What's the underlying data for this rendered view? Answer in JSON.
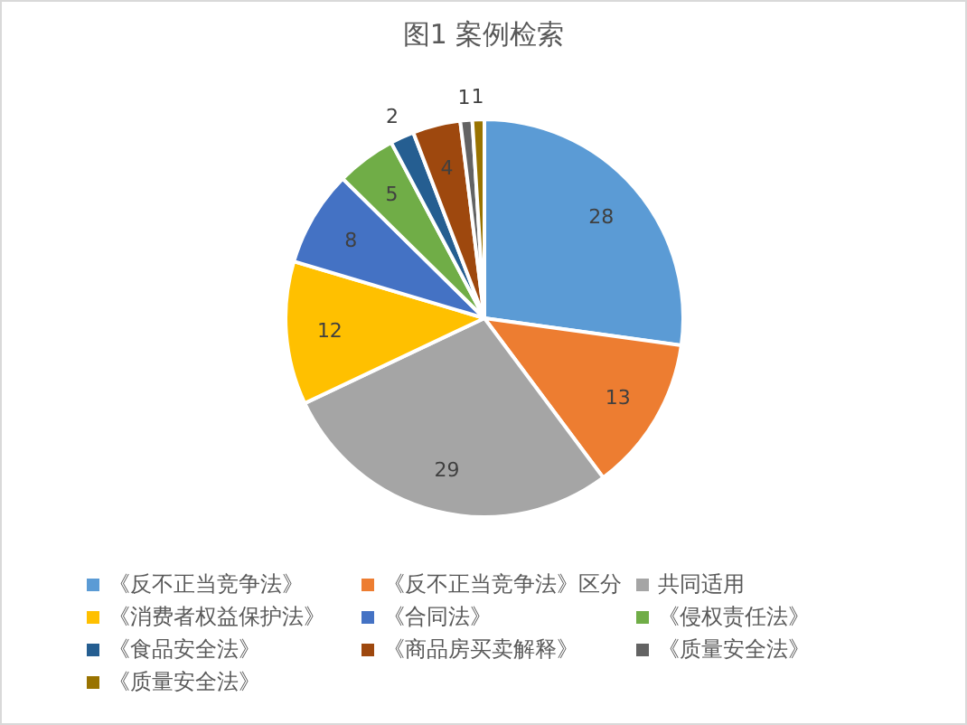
{
  "chart_data": {
    "type": "pie",
    "title": "图1 案例检索",
    "categories": [
      "《反不正当竞争法》",
      "《反不正当竞争法》区分",
      "共同适用",
      "《消费者权益保护法》",
      "《合同法》",
      "《侵权责任法》",
      "《食品安全法》",
      "《商品房买卖解释》",
      "《质量安全法》",
      "《质量安全法》"
    ],
    "values": [
      28,
      13,
      29,
      12,
      8,
      5,
      2,
      4,
      1,
      1
    ],
    "colors": [
      "#5b9bd5",
      "#ed7d31",
      "#a5a5a5",
      "#ffc000",
      "#4472c4",
      "#70ad47",
      "#255e91",
      "#9e480e",
      "#636363",
      "#997300"
    ],
    "data_labels": true,
    "legend": "bottom"
  }
}
